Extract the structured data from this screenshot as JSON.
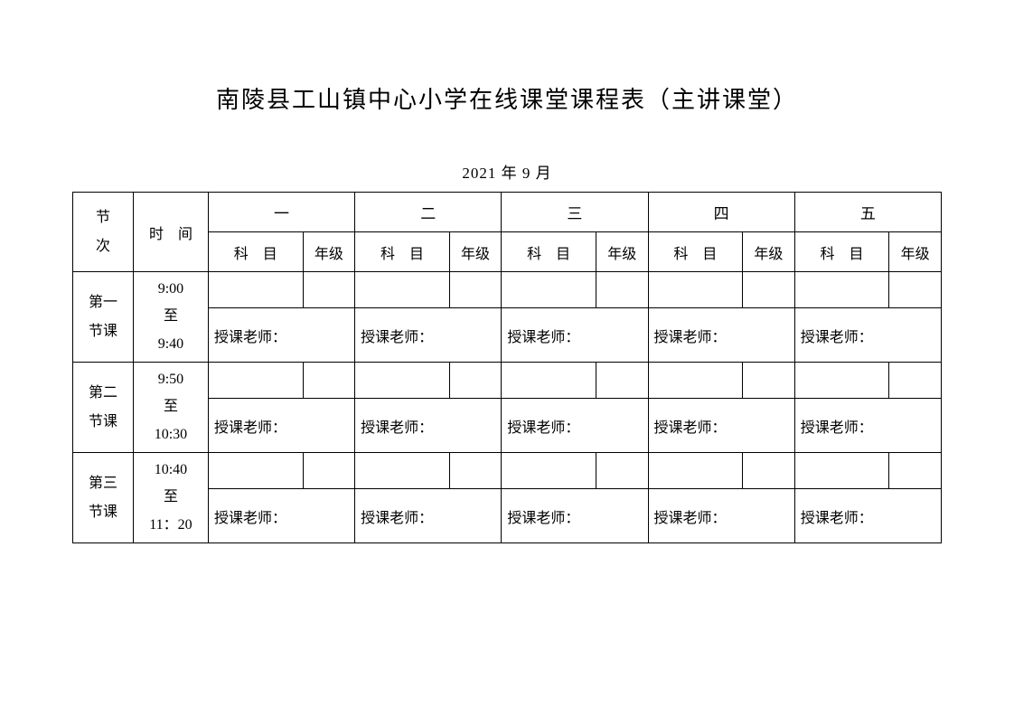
{
  "title": "南陵县工山镇中心小学在线课堂课程表（主讲课堂）",
  "date": "2021 年 9 月",
  "headers": {
    "period": "节\n次",
    "time": "时间",
    "subject": "科目",
    "grade": "年级",
    "days": [
      "一",
      "二",
      "三",
      "四",
      "五"
    ]
  },
  "periods": [
    {
      "label": "第一\n节课",
      "time": "9:00\n至\n9:40"
    },
    {
      "label": "第二\n节课",
      "time": "9:50\n至\n10:30"
    },
    {
      "label": "第三\n节课",
      "time": "10:40\n至\n11：20"
    }
  ],
  "teacher_label": "授课老师：",
  "style": {
    "background_color": "#ffffff",
    "text_color": "#000000",
    "border_color": "#000000",
    "title_fontsize": 26,
    "body_fontsize": 16,
    "date_fontsize": 17
  }
}
